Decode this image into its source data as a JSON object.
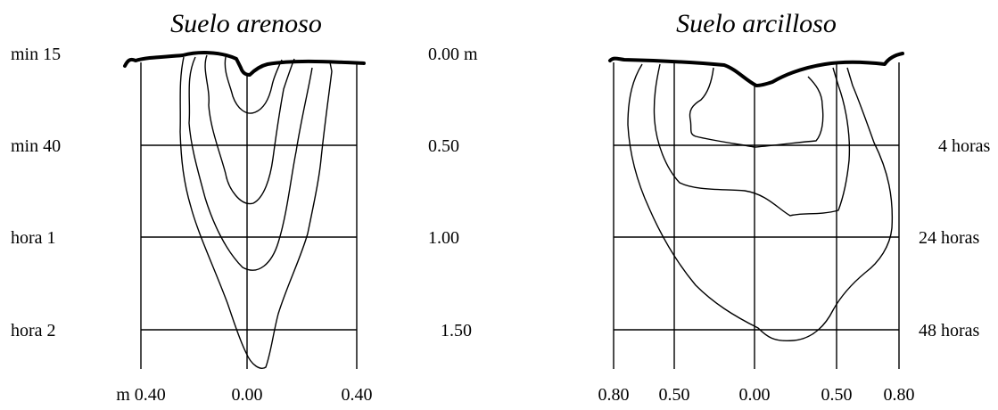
{
  "panels": {
    "sandy": {
      "title": "Suelo arenoso",
      "time_labels": [
        "min 15",
        "min 40",
        "hora 1",
        "hora 2"
      ],
      "x_ticks": [
        "m 0.40",
        "0.00",
        "0.40"
      ]
    },
    "clay": {
      "title": "Suelo arcilloso",
      "time_labels": [
        "4 horas",
        "24 horas",
        "48 horas"
      ],
      "x_ticks": [
        "0.80",
        "0.50",
        "0.00",
        "0.50",
        "0.80"
      ]
    }
  },
  "depth_scale": {
    "labels": [
      "0.00 m",
      "0.50",
      "1.00",
      "1.50"
    ]
  }
}
